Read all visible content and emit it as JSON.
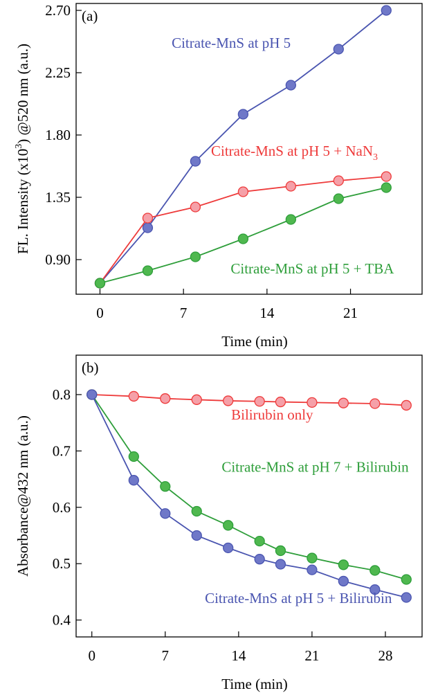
{
  "chart_data": [
    {
      "type": "line",
      "panel_label": "(a)",
      "xlabel": "Time (min)",
      "ylabel": {
        "prefix": "FL. Intensity (x10",
        "sup": "3",
        "suffix": ") @520 nm (a.u.)"
      },
      "xlim": [
        -2,
        27
      ],
      "ylim": [
        0.65,
        2.75
      ],
      "xticks": [
        0,
        7,
        14,
        21
      ],
      "yticks": [
        0.9,
        1.35,
        1.8,
        2.25,
        2.7
      ],
      "ytick_labels": [
        "0.90",
        "1.35",
        "1.80",
        "2.25",
        "2.70"
      ],
      "grid": false,
      "series": [
        {
          "name": "Citrate-MnS at pH 5",
          "label_text": "Citrate-MnS at pH 5",
          "label_pos": [
            11,
            2.43
          ],
          "color": "#4a55b0",
          "marker_fill": "#6f78c8",
          "x": [
            0,
            4,
            8,
            12,
            16,
            20,
            24
          ],
          "y": [
            0.73,
            1.13,
            1.61,
            1.95,
            2.16,
            2.42,
            2.7
          ]
        },
        {
          "name": "Citrate-MnS at pH 5 + NaN3",
          "label_text": "Citrate-MnS at pH 5 + NaN",
          "label_sub": "3",
          "label_pos": [
            16.3,
            1.65
          ],
          "color": "#ee3a3a",
          "marker_fill": "#f5a0a8",
          "x": [
            0,
            4,
            8,
            12,
            16,
            20,
            24
          ],
          "y": [
            0.73,
            1.2,
            1.28,
            1.39,
            1.43,
            1.47,
            1.5
          ]
        },
        {
          "name": "Citrate-MnS at pH 5 + TBA",
          "label_text": "Citrate-MnS at pH 5 + TBA",
          "label_pos": [
            17.8,
            0.8
          ],
          "color": "#2e9e3a",
          "marker_fill": "#4fb84f",
          "x": [
            0,
            4,
            8,
            12,
            16,
            20,
            24
          ],
          "y": [
            0.73,
            0.82,
            0.92,
            1.05,
            1.19,
            1.34,
            1.42
          ]
        }
      ]
    },
    {
      "type": "line",
      "panel_label": "(b)",
      "xlabel": "Time (min)",
      "ylabel": {
        "prefix": "Absorbance@432 nm (a.u.)"
      },
      "xlim": [
        -1.5,
        31.5
      ],
      "ylim": [
        0.37,
        0.87
      ],
      "xticks": [
        0,
        7,
        14,
        21,
        28
      ],
      "yticks": [
        0.4,
        0.5,
        0.6,
        0.7,
        0.8
      ],
      "ytick_labels": [
        "0.4",
        "0.5",
        "0.6",
        "0.7",
        "0.8"
      ],
      "grid": false,
      "series": [
        {
          "name": "Bilirubin only",
          "label_text": "Bilirubin only",
          "label_pos": [
            17.2,
            0.756
          ],
          "color": "#ee3a3a",
          "marker_fill": "#f5a0a8",
          "x": [
            0,
            4,
            7,
            10,
            13,
            16,
            18,
            21,
            24,
            27,
            30
          ],
          "y": [
            0.8,
            0.797,
            0.793,
            0.791,
            0.789,
            0.788,
            0.787,
            0.786,
            0.785,
            0.784,
            0.781
          ]
        },
        {
          "name": "Citrate-MnS at pH 7 + Bilirubin",
          "label_text": "Citrate-MnS at pH 7 + Bilirubin",
          "label_pos": [
            21.3,
            0.663
          ],
          "color": "#2e9e3a",
          "marker_fill": "#4fb84f",
          "x": [
            0,
            4,
            7,
            10,
            13,
            16,
            18,
            21,
            24,
            27,
            30
          ],
          "y": [
            0.8,
            0.69,
            0.637,
            0.593,
            0.568,
            0.54,
            0.523,
            0.51,
            0.498,
            0.488,
            0.472
          ]
        },
        {
          "name": "Citrate-MnS at pH 5 + Bilirubin",
          "label_text": "Citrate-MnS at pH 5 + Bilirubin",
          "label_pos": [
            19.7,
            0.43
          ],
          "color": "#4a55b0",
          "marker_fill": "#6f78c8",
          "x": [
            0,
            4,
            7,
            10,
            13,
            16,
            18,
            21,
            24,
            27,
            30
          ],
          "y": [
            0.8,
            0.648,
            0.589,
            0.55,
            0.528,
            0.508,
            0.499,
            0.489,
            0.469,
            0.454,
            0.44
          ]
        }
      ]
    }
  ]
}
